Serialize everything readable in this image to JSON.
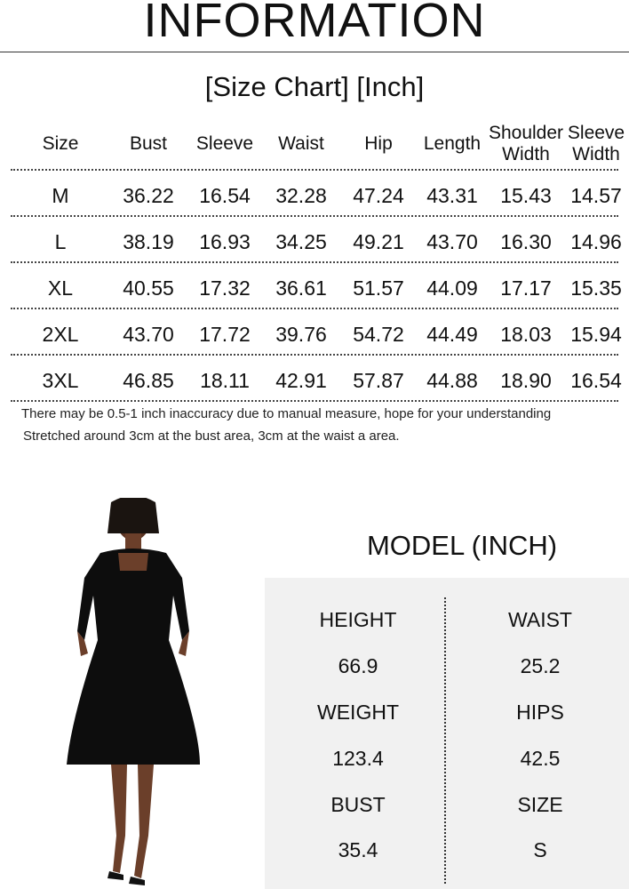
{
  "header": {
    "title": "INFORMATION",
    "subtitle": "[Size Chart] [Inch]"
  },
  "size_chart": {
    "columns": [
      "Size",
      "Bust",
      "Sleeve",
      "Waist",
      "Hip",
      "Length",
      "Shoulder Width",
      "Sleeve Width"
    ],
    "rows": [
      [
        "M",
        "36.22",
        "16.54",
        "32.28",
        "47.24",
        "43.31",
        "15.43",
        "14.57"
      ],
      [
        "L",
        "38.19",
        "16.93",
        "34.25",
        "49.21",
        "43.70",
        "16.30",
        "14.96"
      ],
      [
        "XL",
        "40.55",
        "17.32",
        "36.61",
        "51.57",
        "44.09",
        "17.17",
        "15.35"
      ],
      [
        "2XL",
        "43.70",
        "17.72",
        "39.76",
        "54.72",
        "44.49",
        "18.03",
        "15.94"
      ],
      [
        "3XL",
        "46.85",
        "18.11",
        "42.91",
        "57.87",
        "44.88",
        "18.90",
        "16.54"
      ]
    ]
  },
  "notes": [
    "There may be 0.5-1 inch inaccuracy due to manual measure, hope for your understanding",
    "Stretched around 3cm at the bust area, 3cm at the waist a area."
  ],
  "model": {
    "title": "MODEL (INCH)",
    "left": [
      {
        "label": "HEIGHT",
        "value": "66.9"
      },
      {
        "label": "WEIGHT",
        "value": "123.4"
      },
      {
        "label": "BUST",
        "value": "35.4"
      }
    ],
    "right": [
      {
        "label": "WAIST",
        "value": "25.2"
      },
      {
        "label": "HIPS",
        "value": "42.5"
      },
      {
        "label": "SIZE",
        "value": "S"
      }
    ]
  },
  "colors": {
    "dress": "#0d0d0d",
    "panel": "#f1f1f1",
    "skin": "#6b3f2a"
  }
}
